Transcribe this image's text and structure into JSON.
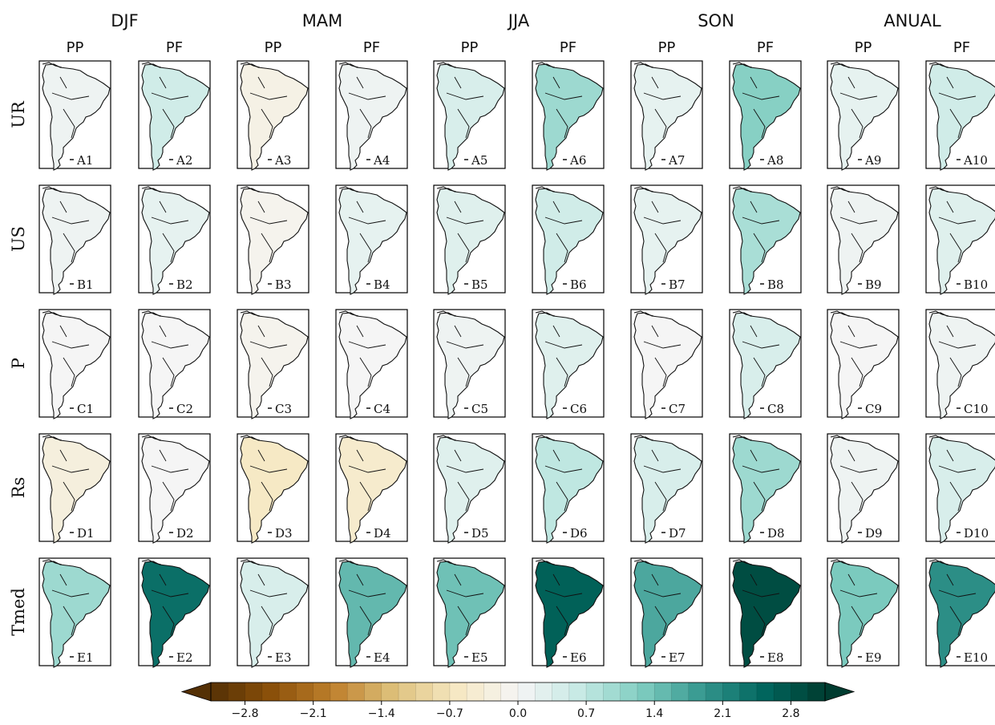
{
  "chart_data": {
    "type": "heatmap",
    "title": "",
    "season_headers": [
      "DJF",
      "MAM",
      "JJA",
      "SON",
      "ANUAL"
    ],
    "column_subheaders": [
      "PP",
      "PF",
      "PP",
      "PF",
      "PP",
      "PF",
      "PP",
      "PF",
      "PP",
      "PF"
    ],
    "row_labels": [
      "UR",
      "US",
      "P",
      "Rs",
      "Tmed"
    ],
    "panel_labels": [
      [
        "A1",
        "A2",
        "A3",
        "A4",
        "A5",
        "A6",
        "A7",
        "A8",
        "A9",
        "A10"
      ],
      [
        "B1",
        "B2",
        "B3",
        "B4",
        "B5",
        "B6",
        "B7",
        "B8",
        "B9",
        "B10"
      ],
      [
        "C1",
        "C2",
        "C3",
        "C4",
        "C5",
        "C6",
        "C7",
        "C8",
        "C9",
        "C10"
      ],
      [
        "D1",
        "D2",
        "D3",
        "D4",
        "D5",
        "D6",
        "D7",
        "D8",
        "D9",
        "D10"
      ],
      [
        "E1",
        "E2",
        "E3",
        "E4",
        "E5",
        "E6",
        "E7",
        "E8",
        "E9",
        "E10"
      ]
    ],
    "panel_mean_values": [
      [
        0.1,
        0.5,
        -0.2,
        0.1,
        0.4,
        1.0,
        0.2,
        1.2,
        0.2,
        0.5
      ],
      [
        0.1,
        0.2,
        -0.1,
        0.2,
        0.3,
        0.5,
        0.2,
        0.9,
        0.1,
        0.3
      ],
      [
        0.0,
        0.0,
        -0.1,
        0.0,
        0.1,
        0.3,
        0.0,
        0.4,
        0.0,
        0.1
      ],
      [
        -0.3,
        0.0,
        -0.6,
        -0.5,
        0.3,
        0.7,
        0.4,
        1.0,
        0.1,
        0.4
      ],
      [
        1.0,
        2.4,
        0.4,
        1.5,
        1.4,
        2.6,
        1.7,
        2.9,
        1.3,
        2.0
      ]
    ],
    "colorbar": {
      "min": -3.15,
      "max": 3.15,
      "step": 0.175,
      "extend": "both",
      "ticks": [
        -2.8,
        -2.1,
        -1.4,
        -0.7,
        0.0,
        0.7,
        1.4,
        2.1,
        2.8
      ],
      "tick_labels": [
        "−2.8",
        "−2.1",
        "−1.4",
        "−0.7",
        "0.0",
        "0.7",
        "1.4",
        "2.1",
        "2.8"
      ],
      "colormap": "BrBG",
      "negative_color_dark": "#543005",
      "neutral_color": "#f5f5f5",
      "positive_color_dark": "#003c30"
    }
  }
}
